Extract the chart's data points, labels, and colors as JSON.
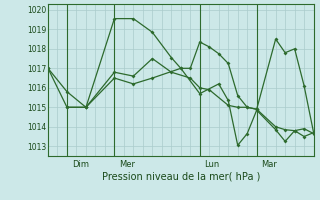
{
  "xlabel": "Pression niveau de la mer( hPa )",
  "bg_color": "#cce8e8",
  "grid_color": "#aacccc",
  "line_color": "#2d6a2d",
  "ylim": [
    1012.5,
    1020.3
  ],
  "xlim": [
    0,
    28
  ],
  "yticks": [
    1013,
    1014,
    1015,
    1016,
    1017,
    1018,
    1019,
    1020
  ],
  "day_ticks": [
    {
      "x": 2.5,
      "label": "Dim"
    },
    {
      "x": 7.5,
      "label": "Mer"
    },
    {
      "x": 16.5,
      "label": "Lun"
    },
    {
      "x": 22.5,
      "label": "Mar"
    }
  ],
  "day_vlines": [
    2,
    7,
    16,
    22
  ],
  "series": [
    [
      0,
      1017.0,
      2,
      1015.8,
      4,
      1015.0,
      7,
      1019.55,
      9,
      1019.55,
      11,
      1018.85,
      13,
      1017.55,
      14,
      1017.0,
      15,
      1017.0,
      16,
      1018.35,
      17,
      1018.1,
      18,
      1017.75,
      19,
      1017.25,
      20,
      1015.6,
      21,
      1015.0,
      22,
      1014.9,
      24,
      1018.5,
      25,
      1017.8,
      26,
      1018.0,
      27,
      1016.1,
      28,
      1013.7
    ],
    [
      2,
      1015.0,
      4,
      1015.0,
      7,
      1016.8,
      9,
      1016.6,
      11,
      1017.5,
      13,
      1016.8,
      15,
      1016.5,
      16,
      1016.0,
      17,
      1015.9,
      19,
      1015.1,
      20,
      1015.0,
      21,
      1015.0,
      22,
      1014.9,
      24,
      1014.0,
      25,
      1013.85,
      26,
      1013.8,
      27,
      1013.9,
      28,
      1013.65
    ],
    [
      0,
      1017.0,
      2,
      1015.0,
      4,
      1015.0,
      7,
      1016.5,
      9,
      1016.2,
      11,
      1016.5,
      14,
      1017.0,
      16,
      1015.7,
      18,
      1016.2,
      19,
      1015.35,
      20,
      1013.05,
      21,
      1013.65,
      22,
      1014.85,
      24,
      1013.85,
      25,
      1013.25,
      26,
      1013.8,
      27,
      1013.5,
      28,
      1013.7
    ]
  ]
}
